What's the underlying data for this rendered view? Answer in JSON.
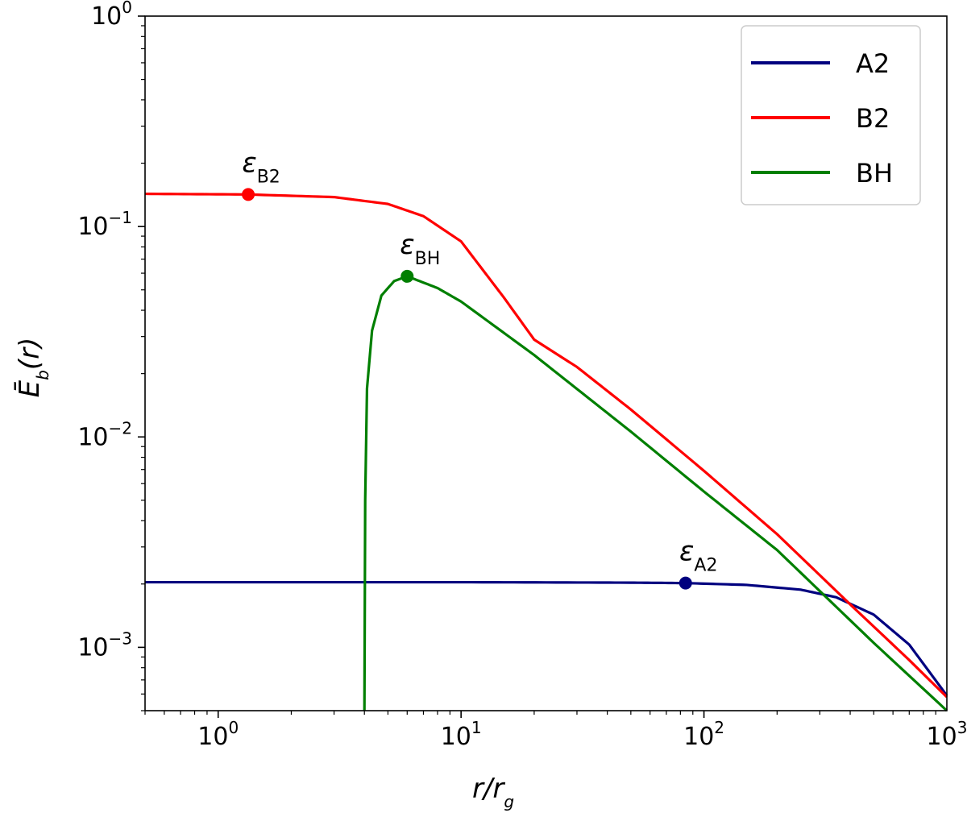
{
  "chart_data": {
    "type": "line",
    "xscale": "log",
    "yscale": "log",
    "xlim": [
      0.5,
      1000
    ],
    "ylim": [
      0.0005,
      1
    ],
    "x_ticks": [
      {
        "value": 1,
        "base": "10",
        "exp": "0"
      },
      {
        "value": 10,
        "base": "10",
        "exp": "1"
      },
      {
        "value": 100,
        "base": "10",
        "exp": "2"
      },
      {
        "value": 1000,
        "base": "10",
        "exp": "3"
      }
    ],
    "y_ticks": [
      {
        "value": 0.001,
        "base": "10",
        "exp": "−3"
      },
      {
        "value": 0.01,
        "base": "10",
        "exp": "−2"
      },
      {
        "value": 0.1,
        "base": "10",
        "exp": "−1"
      },
      {
        "value": 1,
        "base": "10",
        "exp": "0"
      }
    ],
    "xlabel": {
      "main": "r/r",
      "sub": "g"
    },
    "ylabel": {
      "main": "Ē",
      "sub": "b",
      "tail": "(r)"
    },
    "legend_position": "top-right",
    "series": [
      {
        "name": "A2",
        "color": "#00007f",
        "points": [
          [
            0.5,
            0.00204
          ],
          [
            10,
            0.00204
          ],
          [
            50,
            0.00203
          ],
          [
            84,
            0.00202
          ],
          [
            150,
            0.00198
          ],
          [
            250,
            0.00188
          ],
          [
            350,
            0.00173
          ],
          [
            500,
            0.00143
          ],
          [
            700,
            0.00103
          ],
          [
            1000,
            0.00059
          ]
        ]
      },
      {
        "name": "B2",
        "color": "#ff0000",
        "points": [
          [
            0.5,
            0.143
          ],
          [
            1.33,
            0.142
          ],
          [
            3,
            0.138
          ],
          [
            5,
            0.128
          ],
          [
            7,
            0.112
          ],
          [
            10,
            0.085
          ],
          [
            15,
            0.046
          ],
          [
            20,
            0.029
          ],
          [
            30,
            0.0215
          ],
          [
            50,
            0.0135
          ],
          [
            100,
            0.0069
          ],
          [
            200,
            0.00345
          ],
          [
            400,
            0.0016
          ],
          [
            700,
            0.00087
          ],
          [
            1000,
            0.00058
          ]
        ]
      },
      {
        "name": "BH",
        "color": "#007f00",
        "points": [
          [
            4.0,
            0.0005
          ],
          [
            4.03,
            0.005
          ],
          [
            4.1,
            0.017
          ],
          [
            4.3,
            0.032
          ],
          [
            4.7,
            0.047
          ],
          [
            5.3,
            0.055
          ],
          [
            6.0,
            0.058
          ],
          [
            8,
            0.051
          ],
          [
            10,
            0.044
          ],
          [
            20,
            0.0245
          ],
          [
            50,
            0.0106
          ],
          [
            100,
            0.0055
          ],
          [
            200,
            0.0029
          ],
          [
            500,
            0.00105
          ],
          [
            1000,
            0.0005
          ]
        ]
      }
    ],
    "markers": [
      {
        "series": "B2",
        "x": 1.33,
        "y": 0.142,
        "color": "#ff0000",
        "label": "B2"
      },
      {
        "series": "BH",
        "x": 6.0,
        "y": 0.058,
        "color": "#007f00",
        "label": "BH"
      },
      {
        "series": "A2",
        "x": 84,
        "y": 0.00202,
        "color": "#00007f",
        "label": "A2"
      }
    ],
    "annotation_symbol": "ε"
  }
}
